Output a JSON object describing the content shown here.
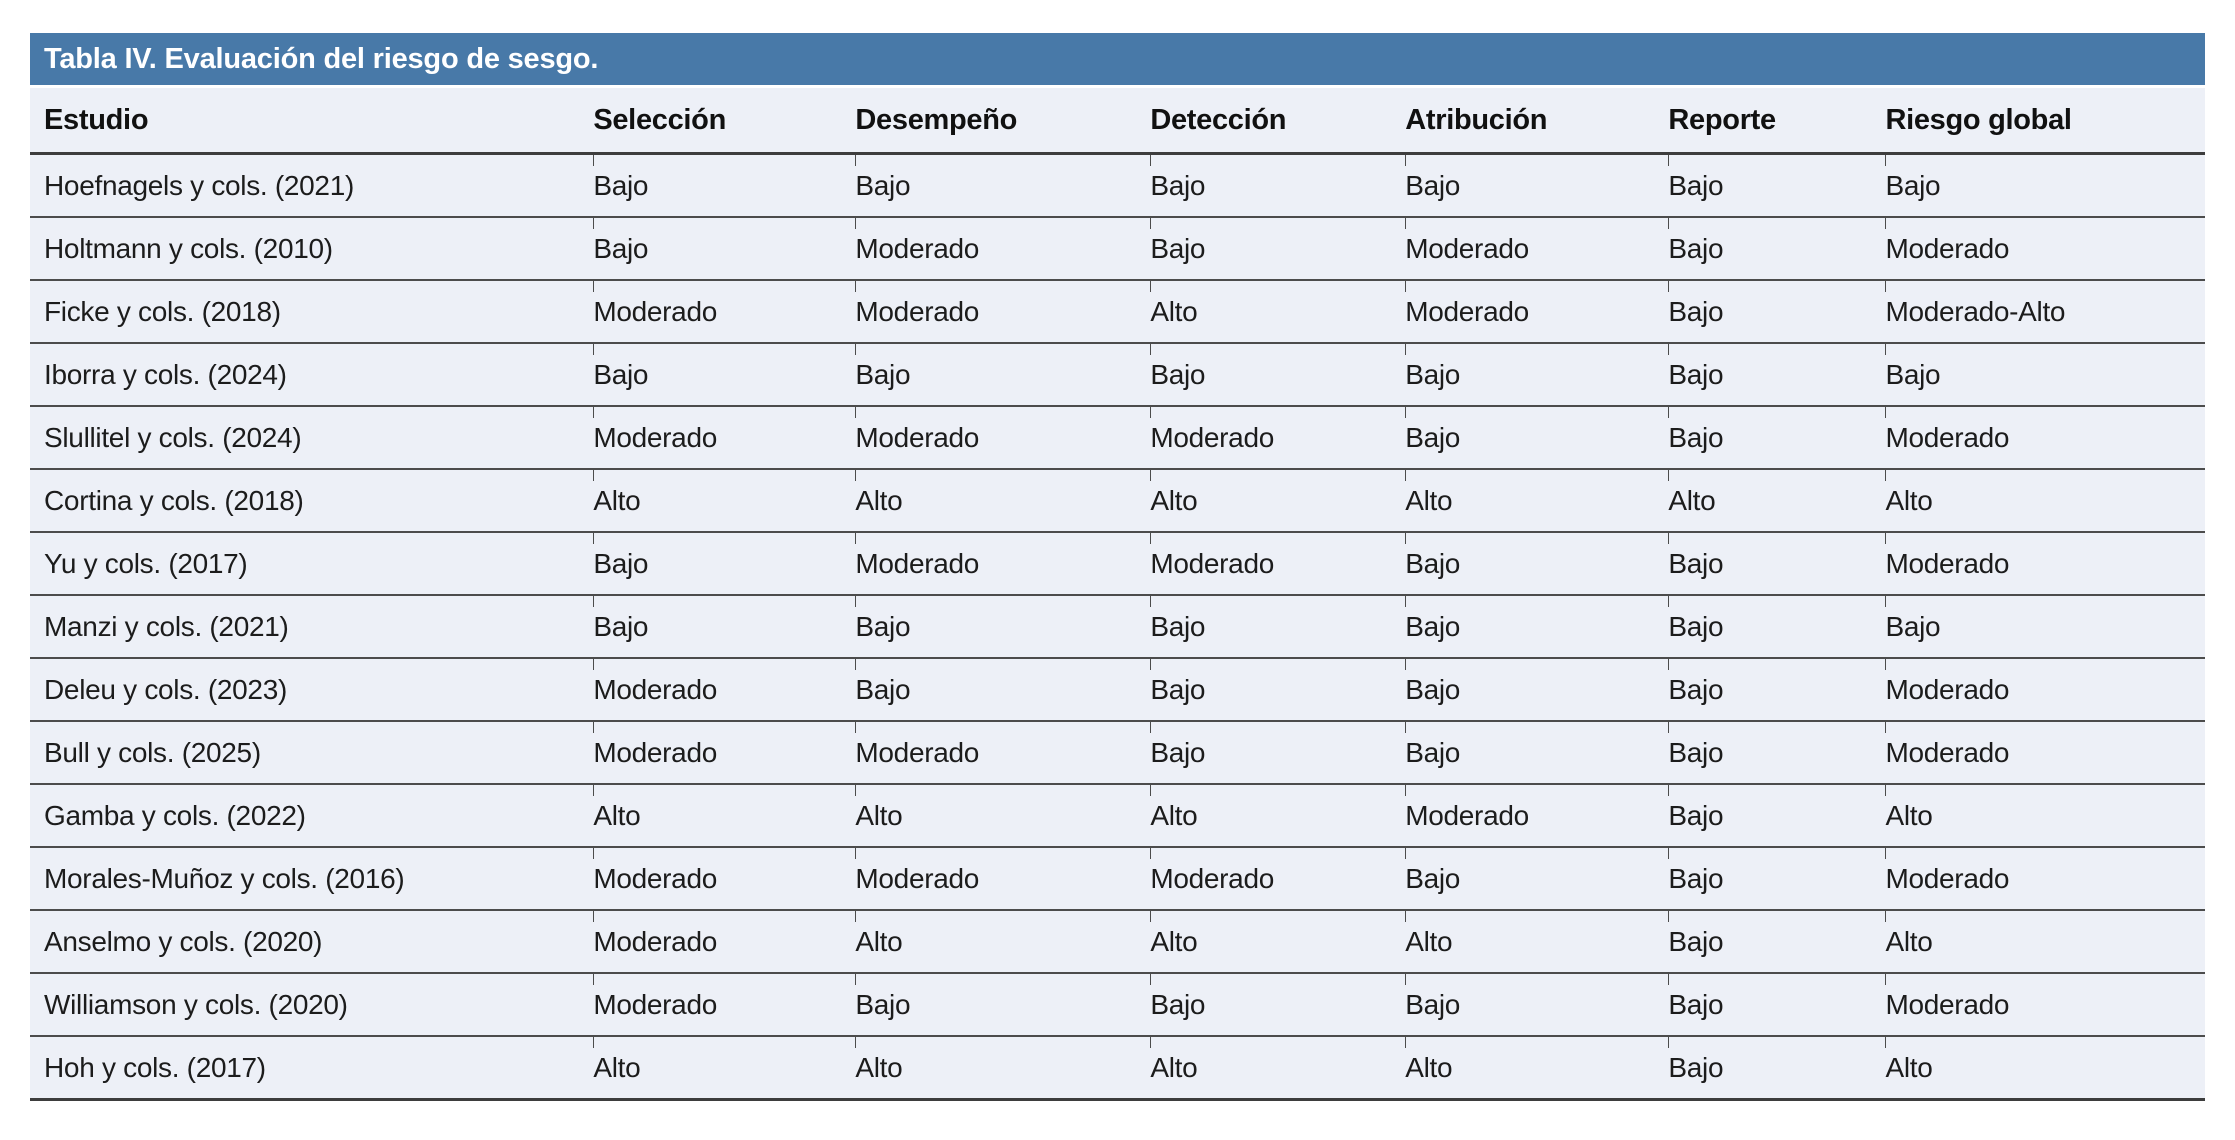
{
  "table": {
    "title": "Tabla IV. Evaluación del riesgo de sesgo.",
    "columns": [
      "Estudio",
      "Selección",
      "Desempeño",
      "Detección",
      "Atribución",
      "Reporte",
      "Riesgo global"
    ],
    "rows": [
      [
        "Hoefnagels y cols. (2021)",
        "Bajo",
        "Bajo",
        "Bajo",
        "Bajo",
        "Bajo",
        "Bajo"
      ],
      [
        "Holtmann y cols. (2010)",
        "Bajo",
        "Moderado",
        "Bajo",
        "Moderado",
        "Bajo",
        "Moderado"
      ],
      [
        "Ficke y cols. (2018)",
        "Moderado",
        "Moderado",
        "Alto",
        "Moderado",
        "Bajo",
        "Moderado-Alto"
      ],
      [
        "Iborra y cols. (2024)",
        "Bajo",
        "Bajo",
        "Bajo",
        "Bajo",
        "Bajo",
        "Bajo"
      ],
      [
        "Slullitel y cols. (2024)",
        "Moderado",
        "Moderado",
        "Moderado",
        "Bajo",
        "Bajo",
        "Moderado"
      ],
      [
        "Cortina y cols. (2018)",
        "Alto",
        "Alto",
        "Alto",
        "Alto",
        "Alto",
        "Alto"
      ],
      [
        "Yu y cols. (2017)",
        "Bajo",
        "Moderado",
        "Moderado",
        "Bajo",
        "Bajo",
        "Moderado"
      ],
      [
        "Manzi y cols. (2021)",
        "Bajo",
        "Bajo",
        "Bajo",
        "Bajo",
        "Bajo",
        "Bajo"
      ],
      [
        "Deleu y cols. (2023)",
        "Moderado",
        "Bajo",
        "Bajo",
        "Bajo",
        "Bajo",
        "Moderado"
      ],
      [
        "Bull y cols. (2025)",
        "Moderado",
        "Moderado",
        "Bajo",
        "Bajo",
        "Bajo",
        "Moderado"
      ],
      [
        "Gamba y cols. (2022)",
        "Alto",
        "Alto",
        "Alto",
        "Moderado",
        "Bajo",
        "Alto"
      ],
      [
        "Morales-Muñoz y cols. (2016)",
        "Moderado",
        "Moderado",
        "Moderado",
        "Bajo",
        "Bajo",
        "Moderado"
      ],
      [
        "Anselmo y cols. (2020)",
        "Moderado",
        "Alto",
        "Alto",
        "Alto",
        "Bajo",
        "Alto"
      ],
      [
        "Williamson y cols. (2020)",
        "Moderado",
        "Bajo",
        "Bajo",
        "Bajo",
        "Bajo",
        "Moderado"
      ],
      [
        "Hoh y cols. (2017)",
        "Alto",
        "Alto",
        "Alto",
        "Alto",
        "Bajo",
        "Alto"
      ]
    ],
    "colors": {
      "title_bar": "#4879A8",
      "title_text": "#FFFFFF",
      "row_bg": "#EDF0F7"
    }
  }
}
